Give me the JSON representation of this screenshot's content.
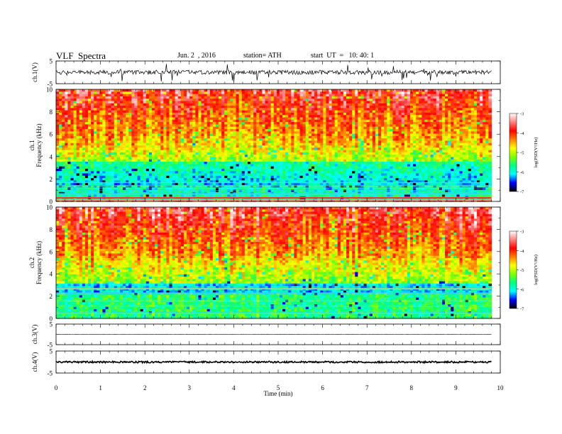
{
  "header": {
    "title": "VLF  Spectra",
    "date": "Jun. 2  , 2016",
    "station": "station= ATH",
    "start": "start  UT  =   10: 40: 1"
  },
  "chart_data": {
    "type": "heatmap",
    "xlabel": "Time  (min)",
    "xlim": [
      0,
      10
    ],
    "x_ticks": [
      "0",
      "1",
      "2",
      "3",
      "4",
      "5",
      "6",
      "7",
      "8",
      "9",
      "10"
    ],
    "panels": [
      {
        "id": "ch1-wave",
        "ylabel": "ch.1(V)",
        "ylim": [
          -5,
          5
        ],
        "y_ticks": [
          "5",
          "-5"
        ],
        "type": "line"
      },
      {
        "id": "ch1-spec",
        "ylabel_top": "ch.1",
        "ylabel": "Frequency  (kHz)",
        "ylim": [
          0,
          10
        ],
        "y_ticks": [
          "0",
          "2",
          "4",
          "6",
          "8",
          "10"
        ],
        "type": "heatmap"
      },
      {
        "id": "ch2-spec",
        "ylabel_top": "ch.2",
        "ylabel": "Frequency  (kHz)",
        "ylim": [
          0,
          10
        ],
        "y_ticks": [
          "0",
          "2",
          "4",
          "6",
          "8",
          "10"
        ],
        "type": "heatmap"
      },
      {
        "id": "ch3-wave",
        "ylabel": "ch.3(V)",
        "ylim": [
          -5,
          5
        ],
        "y_ticks": [
          "5",
          "-5"
        ],
        "type": "line"
      },
      {
        "id": "ch4-wave",
        "ylabel": "ch.4(V)",
        "ylim": [
          -5,
          5
        ],
        "y_ticks": [
          "5",
          "-5"
        ],
        "type": "line"
      }
    ],
    "colorbar": {
      "label": "log(PSD(V²/Hz)",
      "range": [
        -7,
        -3
      ],
      "ticks": [
        "-3",
        "-4",
        "-5",
        "-6",
        "-7"
      ],
      "colors": [
        "#000000",
        "#0000ff",
        "#00ffff",
        "#00ff80",
        "#80ff00",
        "#ffff00",
        "#ff8000",
        "#ff0000",
        "#ff8080",
        "#ffffff"
      ]
    },
    "data_end_min": 9.8
  }
}
